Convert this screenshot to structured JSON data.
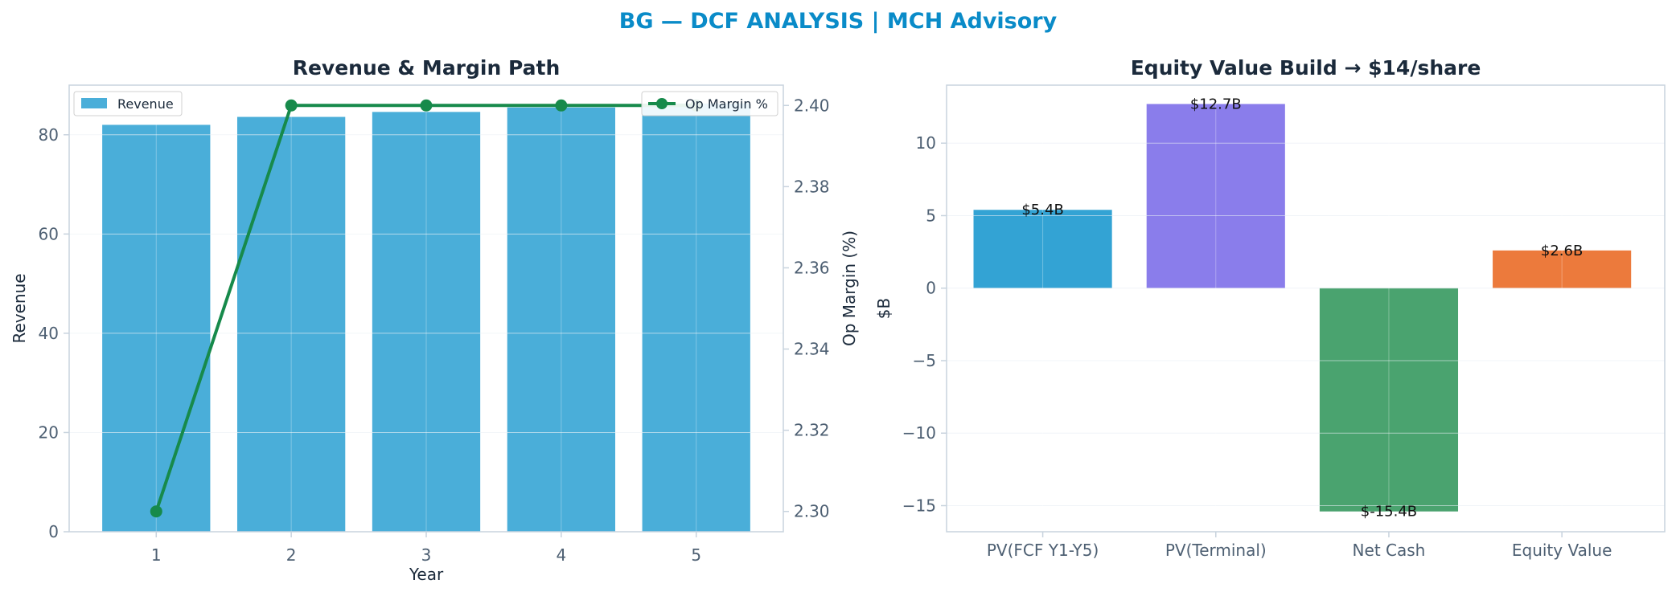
{
  "suptitle": "BG — DCF ANALYSIS | MCH Advisory",
  "colors": {
    "title": "#0a8bc8",
    "heading": "#1b2a3b",
    "axis_text": "#4d5f72",
    "spine": "#c8d3de",
    "grid": "#e6edf3",
    "revenue_bar": "#4aaed9",
    "op_margin_line": "#178a4b",
    "bridge_bars": [
      "#33a3d4",
      "#8a7deb",
      "#4aa36f",
      "#ec7a3c"
    ],
    "label_text": "#111111"
  },
  "chart_data": [
    {
      "type": "bar+line",
      "title": "Revenue & Margin Path",
      "xlabel": "Year",
      "ylabel": "Revenue",
      "y2label": "Op Margin (%)",
      "categories": [
        "1",
        "2",
        "3",
        "4",
        "5"
      ],
      "ylim": [
        0,
        90
      ],
      "yticks": [
        0,
        20,
        40,
        60,
        80
      ],
      "y2lim": [
        2.295,
        2.405
      ],
      "y2ticks": [
        2.3,
        2.32,
        2.34,
        2.36,
        2.38,
        2.4
      ],
      "grid": true,
      "series": [
        {
          "name": "Revenue",
          "type": "bar",
          "axis": "left",
          "values": [
            82.0,
            83.6,
            84.6,
            85.5,
            86.3
          ]
        },
        {
          "name": "Op Margin %",
          "type": "line",
          "axis": "right",
          "values": [
            2.3,
            2.4,
            2.4,
            2.4,
            2.4
          ]
        }
      ],
      "legends": {
        "bar": "top-left",
        "line": "top-right"
      }
    },
    {
      "type": "bar",
      "title": "Equity Value Build → $14/share",
      "xlabel": "",
      "ylabel": "$B",
      "categories": [
        "PV(FCF Y1-Y5)",
        "PV(Terminal)",
        "Net Cash",
        "Equity Value"
      ],
      "values": [
        5.4,
        12.7,
        -15.4,
        2.6
      ],
      "data_labels": [
        "$5.4B",
        "$12.7B",
        "$-15.4B",
        "$2.6B"
      ],
      "ylim": [
        -16.8,
        14.0
      ],
      "yticks": [
        -15,
        -10,
        -5,
        0,
        5,
        10
      ],
      "grid": true
    }
  ]
}
